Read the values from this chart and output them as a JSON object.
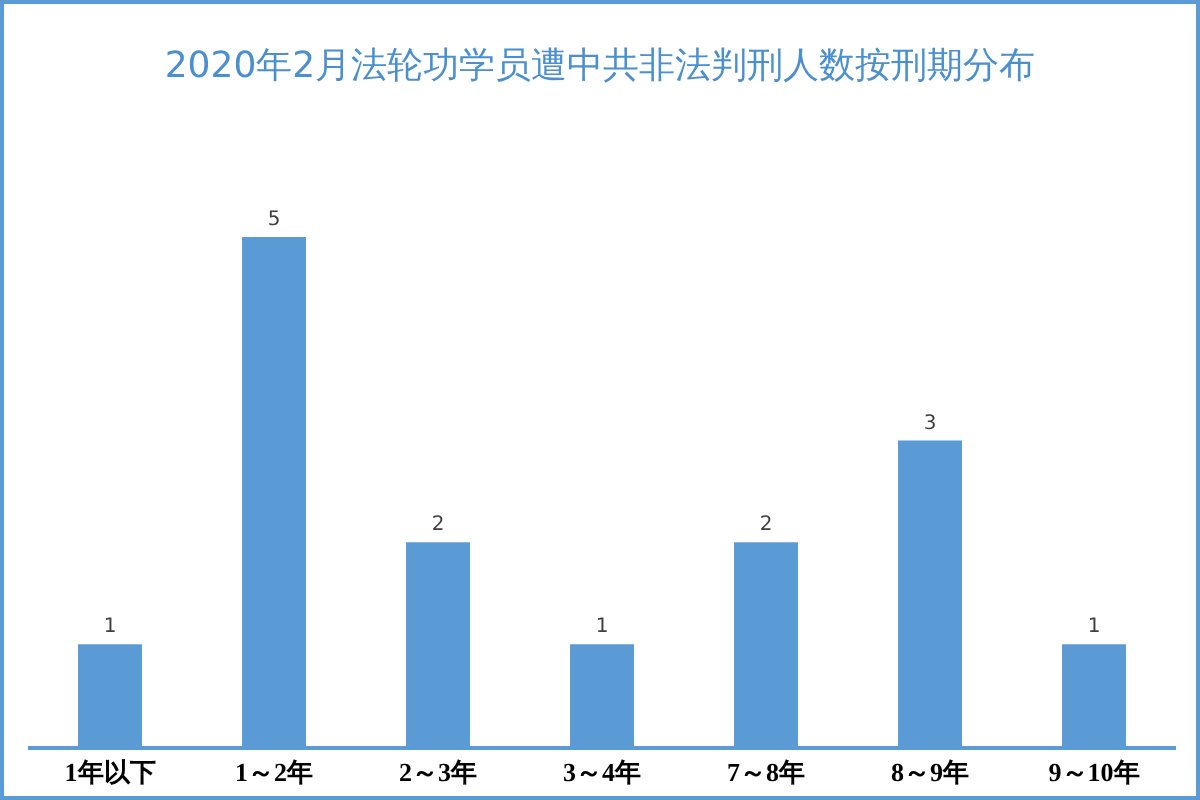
{
  "chart_data": {
    "type": "bar",
    "title": "2020年2月法轮功学员遭中共非法判刑人数按刑期分布",
    "categories": [
      "1年以下",
      "1～2年",
      "2～3年",
      "3～4年",
      "7～8年",
      "8～9年",
      "9～10年"
    ],
    "values": [
      1,
      5,
      2,
      1,
      2,
      3,
      1
    ],
    "color": "#5b9bd5",
    "data_labels": true
  }
}
